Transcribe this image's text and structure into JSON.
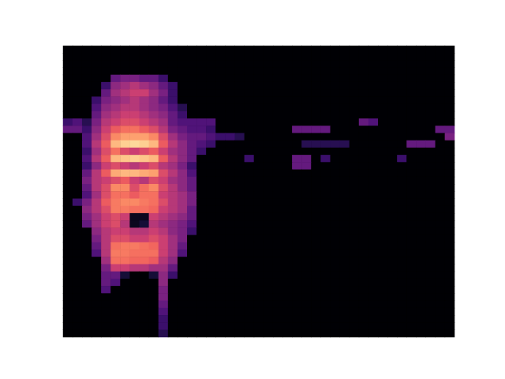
{
  "chart_data": {
    "type": "heatmap",
    "color": "magma",
    "tick_labels": false,
    "zlim": [
      0,
      1
    ],
    "z": [
      [
        0,
        0,
        0,
        0,
        0,
        0,
        0,
        0,
        0,
        0,
        0,
        0,
        0,
        0,
        0,
        0,
        0,
        0,
        0,
        0,
        0,
        0,
        0,
        0,
        0,
        0,
        0,
        0,
        0,
        0,
        0,
        0,
        0,
        0,
        0,
        0,
        0,
        0,
        0,
        0,
        0
      ],
      [
        0,
        0,
        0,
        0,
        0,
        0,
        0,
        0,
        0,
        0,
        0,
        0,
        0,
        0,
        0,
        0,
        0,
        0,
        0,
        0,
        0,
        0,
        0,
        0,
        0,
        0,
        0,
        0,
        0,
        0,
        0,
        0,
        0,
        0,
        0,
        0,
        0,
        0,
        0,
        0,
        0
      ],
      [
        0,
        0,
        0,
        0,
        0,
        0,
        0,
        0,
        0,
        0,
        0,
        0,
        0,
        0,
        0,
        0,
        0,
        0,
        0,
        0,
        0,
        0,
        0,
        0,
        0,
        0,
        0,
        0,
        0,
        0,
        0,
        0,
        0,
        0,
        0,
        0,
        0,
        0,
        0,
        0,
        0
      ],
      [
        0,
        0,
        0,
        0,
        0,
        0,
        0,
        0,
        0,
        0,
        0,
        0,
        0,
        0,
        0,
        0,
        0,
        0,
        0,
        0,
        0,
        0,
        0,
        0,
        0,
        0,
        0,
        0,
        0,
        0,
        0,
        0,
        0,
        0,
        0,
        0,
        0,
        0,
        0,
        0,
        0
      ],
      [
        0,
        0,
        0,
        0,
        0,
        0.3,
        0.35,
        0.35,
        0.3,
        0.3,
        0.2,
        0,
        0,
        0,
        0,
        0,
        0,
        0,
        0,
        0,
        0,
        0,
        0,
        0,
        0,
        0,
        0,
        0,
        0,
        0,
        0,
        0,
        0,
        0,
        0,
        0,
        0,
        0,
        0,
        0,
        0
      ],
      [
        0,
        0,
        0,
        0,
        0.2,
        0.4,
        0.45,
        0.5,
        0.45,
        0.4,
        0.3,
        0.2,
        0,
        0,
        0,
        0,
        0,
        0,
        0,
        0,
        0,
        0,
        0,
        0,
        0,
        0,
        0,
        0,
        0,
        0,
        0,
        0,
        0,
        0,
        0,
        0,
        0,
        0,
        0,
        0,
        0
      ],
      [
        0,
        0,
        0,
        0,
        0.3,
        0.45,
        0.5,
        0.55,
        0.55,
        0.45,
        0.35,
        0.2,
        0,
        0,
        0,
        0,
        0,
        0,
        0,
        0,
        0,
        0,
        0,
        0,
        0,
        0,
        0,
        0,
        0,
        0,
        0,
        0,
        0,
        0,
        0,
        0,
        0,
        0,
        0,
        0,
        0
      ],
      [
        0,
        0,
        0,
        0.2,
        0.35,
        0.4,
        0.45,
        0.5,
        0.45,
        0.4,
        0.3,
        0.2,
        0,
        0,
        0,
        0,
        0,
        0,
        0,
        0,
        0,
        0,
        0,
        0,
        0,
        0,
        0,
        0,
        0,
        0,
        0,
        0,
        0,
        0,
        0,
        0,
        0,
        0,
        0,
        0,
        0
      ],
      [
        0,
        0,
        0,
        0.25,
        0.4,
        0.45,
        0.5,
        0.5,
        0.45,
        0.4,
        0.35,
        0.25,
        0.15,
        0,
        0,
        0,
        0,
        0,
        0,
        0,
        0,
        0,
        0,
        0,
        0,
        0,
        0,
        0,
        0,
        0,
        0,
        0,
        0,
        0,
        0,
        0,
        0,
        0,
        0,
        0,
        0
      ],
      [
        0,
        0,
        0,
        0.3,
        0.45,
        0.5,
        0.55,
        0.55,
        0.5,
        0.45,
        0.4,
        0.3,
        0.2,
        0,
        0,
        0,
        0,
        0,
        0,
        0,
        0,
        0,
        0,
        0,
        0,
        0,
        0,
        0,
        0,
        0,
        0,
        0,
        0,
        0,
        0,
        0,
        0,
        0,
        0,
        0,
        0
      ],
      [
        0.2,
        0.25,
        0.15,
        0.35,
        0.5,
        0.55,
        0.6,
        0.6,
        0.55,
        0.5,
        0.45,
        0.3,
        0.25,
        0.25,
        0.25,
        0.25,
        0,
        0,
        0,
        0,
        0,
        0,
        0,
        0,
        0,
        0,
        0,
        0,
        0,
        0,
        0,
        0.3,
        0.25,
        0,
        0,
        0,
        0,
        0,
        0,
        0,
        0
      ],
      [
        0.3,
        0.3,
        0.2,
        0.4,
        0.55,
        0.65,
        0.7,
        0.7,
        0.65,
        0.6,
        0.5,
        0.35,
        0.3,
        0.25,
        0.25,
        0.2,
        0,
        0,
        0,
        0,
        0,
        0,
        0,
        0,
        0.3,
        0.3,
        0.3,
        0.3,
        0,
        0,
        0,
        0,
        0,
        0,
        0,
        0,
        0,
        0,
        0,
        0.3,
        0.3
      ],
      [
        0,
        0,
        0.25,
        0.45,
        0.6,
        0.75,
        0.8,
        0.8,
        0.8,
        0.75,
        0.6,
        0.45,
        0.35,
        0.3,
        0.3,
        0.25,
        0.2,
        0.2,
        0.15,
        0,
        0,
        0,
        0,
        0,
        0,
        0,
        0,
        0,
        0,
        0,
        0,
        0,
        0,
        0,
        0,
        0,
        0,
        0,
        0,
        0,
        0.35
      ],
      [
        0,
        0,
        0.25,
        0.5,
        0.65,
        0.85,
        0.9,
        0.92,
        0.9,
        0.85,
        0.65,
        0.5,
        0.4,
        0.3,
        0.25,
        0.2,
        0,
        0,
        0,
        0,
        0,
        0,
        0,
        0,
        0,
        0.15,
        0.15,
        0.15,
        0.15,
        0.15,
        0,
        0,
        0,
        0,
        0,
        0,
        0.3,
        0.3,
        0.3,
        0,
        0
      ],
      [
        0,
        0,
        0.2,
        0.45,
        0.6,
        0.7,
        0.6,
        0.55,
        0.6,
        0.65,
        0.55,
        0.45,
        0.4,
        0.3,
        0.2,
        0,
        0,
        0,
        0,
        0,
        0,
        0,
        0,
        0,
        0,
        0,
        0,
        0,
        0,
        0,
        0,
        0,
        0,
        0,
        0,
        0,
        0,
        0,
        0,
        0,
        0
      ],
      [
        0,
        0,
        0.25,
        0.5,
        0.65,
        0.85,
        0.88,
        0.9,
        0.88,
        0.85,
        0.65,
        0.5,
        0.4,
        0.3,
        0,
        0,
        0,
        0,
        0,
        0.2,
        0,
        0,
        0,
        0,
        0.3,
        0.3,
        0,
        0.2,
        0,
        0,
        0,
        0,
        0,
        0,
        0,
        0.2,
        0,
        0,
        0,
        0,
        0
      ],
      [
        0,
        0,
        0.2,
        0.4,
        0.55,
        0.6,
        0.55,
        0.5,
        0.55,
        0.6,
        0.5,
        0.45,
        0.35,
        0.2,
        0,
        0,
        0,
        0,
        0,
        0,
        0,
        0,
        0,
        0,
        0.3,
        0.3,
        0,
        0,
        0,
        0,
        0,
        0,
        0,
        0,
        0,
        0,
        0,
        0,
        0,
        0,
        0
      ],
      [
        0,
        0,
        0.3,
        0.5,
        0.65,
        0.82,
        0.85,
        0.85,
        0.82,
        0.8,
        0.6,
        0.5,
        0.4,
        0.25,
        0,
        0,
        0,
        0,
        0,
        0,
        0,
        0,
        0,
        0,
        0,
        0,
        0,
        0,
        0,
        0,
        0,
        0,
        0,
        0,
        0,
        0,
        0,
        0,
        0,
        0,
        0
      ],
      [
        0,
        0,
        0.35,
        0.5,
        0.55,
        0.6,
        0.65,
        0.55,
        0.5,
        0.6,
        0.55,
        0.45,
        0.4,
        0.3,
        0,
        0,
        0,
        0,
        0,
        0,
        0,
        0,
        0,
        0,
        0,
        0,
        0,
        0,
        0,
        0,
        0,
        0,
        0,
        0,
        0,
        0,
        0,
        0,
        0,
        0,
        0
      ],
      [
        0,
        0,
        0.3,
        0.5,
        0.6,
        0.75,
        0.75,
        0.6,
        0.7,
        0.75,
        0.6,
        0.5,
        0.4,
        0.3,
        0,
        0,
        0,
        0,
        0,
        0,
        0,
        0,
        0,
        0,
        0,
        0,
        0,
        0,
        0,
        0,
        0,
        0,
        0,
        0,
        0,
        0,
        0,
        0,
        0,
        0,
        0
      ],
      [
        0,
        0,
        0.25,
        0.45,
        0.6,
        0.7,
        0.7,
        0.65,
        0.7,
        0.7,
        0.55,
        0.5,
        0.45,
        0.35,
        0,
        0,
        0,
        0,
        0,
        0,
        0,
        0,
        0,
        0,
        0,
        0,
        0,
        0,
        0,
        0,
        0,
        0,
        0,
        0,
        0,
        0,
        0,
        0,
        0,
        0,
        0
      ],
      [
        0,
        0.2,
        0.35,
        0.5,
        0.65,
        0.72,
        0.75,
        0.75,
        0.72,
        0.7,
        0.6,
        0.5,
        0.45,
        0.35,
        0,
        0,
        0,
        0,
        0,
        0,
        0,
        0,
        0,
        0,
        0,
        0,
        0,
        0,
        0,
        0,
        0,
        0,
        0,
        0,
        0,
        0,
        0,
        0,
        0,
        0,
        0
      ],
      [
        0,
        0,
        0.4,
        0.5,
        0.6,
        0.72,
        0.72,
        0.7,
        0.7,
        0.68,
        0.55,
        0.5,
        0.45,
        0.3,
        0,
        0,
        0,
        0,
        0,
        0,
        0,
        0,
        0,
        0,
        0,
        0,
        0,
        0,
        0,
        0,
        0,
        0,
        0,
        0,
        0,
        0,
        0,
        0,
        0,
        0,
        0
      ],
      [
        0,
        0,
        0.35,
        0.45,
        0.55,
        0.6,
        0.55,
        0.05,
        0.05,
        0.55,
        0.5,
        0.45,
        0.4,
        0.3,
        0,
        0,
        0,
        0,
        0,
        0,
        0,
        0,
        0,
        0,
        0,
        0,
        0,
        0,
        0,
        0,
        0,
        0,
        0,
        0,
        0,
        0,
        0,
        0,
        0,
        0,
        0
      ],
      [
        0,
        0,
        0.3,
        0.45,
        0.55,
        0.6,
        0.5,
        0.05,
        0.1,
        0.5,
        0.45,
        0.4,
        0.35,
        0.25,
        0,
        0,
        0,
        0,
        0,
        0,
        0,
        0,
        0,
        0,
        0,
        0,
        0,
        0,
        0,
        0,
        0,
        0,
        0,
        0,
        0,
        0,
        0,
        0,
        0,
        0,
        0
      ],
      [
        0,
        0,
        0,
        0.4,
        0.5,
        0.55,
        0.55,
        0.5,
        0.5,
        0.55,
        0.5,
        0.4,
        0.35,
        0.2,
        0,
        0,
        0,
        0,
        0,
        0,
        0,
        0,
        0,
        0,
        0,
        0,
        0,
        0,
        0,
        0,
        0,
        0,
        0,
        0,
        0,
        0,
        0,
        0,
        0,
        0,
        0
      ],
      [
        0,
        0,
        0,
        0.35,
        0.5,
        0.6,
        0.6,
        0.55,
        0.55,
        0.6,
        0.55,
        0.45,
        0.35,
        0,
        0,
        0,
        0,
        0,
        0,
        0,
        0,
        0,
        0,
        0,
        0,
        0,
        0,
        0,
        0,
        0,
        0,
        0,
        0,
        0,
        0,
        0,
        0,
        0,
        0,
        0,
        0
      ],
      [
        0,
        0,
        0,
        0.3,
        0.5,
        0.7,
        0.72,
        0.72,
        0.7,
        0.68,
        0.55,
        0.45,
        0.3,
        0,
        0,
        0,
        0,
        0,
        0,
        0,
        0,
        0,
        0,
        0,
        0,
        0,
        0,
        0,
        0,
        0,
        0,
        0,
        0,
        0,
        0,
        0,
        0,
        0,
        0,
        0,
        0
      ],
      [
        0,
        0,
        0,
        0.25,
        0.5,
        0.72,
        0.72,
        0.7,
        0.7,
        0.7,
        0.55,
        0.45,
        0.25,
        0,
        0,
        0,
        0,
        0,
        0,
        0,
        0,
        0,
        0,
        0,
        0,
        0,
        0,
        0,
        0,
        0,
        0,
        0,
        0,
        0,
        0,
        0,
        0,
        0,
        0,
        0,
        0
      ],
      [
        0,
        0,
        0,
        0,
        0.45,
        0.7,
        0.7,
        0.68,
        0.68,
        0.65,
        0.5,
        0.4,
        0,
        0,
        0,
        0,
        0,
        0,
        0,
        0,
        0,
        0,
        0,
        0,
        0,
        0,
        0,
        0,
        0,
        0,
        0,
        0,
        0,
        0,
        0,
        0,
        0,
        0,
        0,
        0,
        0
      ],
      [
        0,
        0,
        0,
        0,
        0.35,
        0.55,
        0.55,
        0.5,
        0.5,
        0.45,
        0.45,
        0.3,
        0,
        0,
        0,
        0,
        0,
        0,
        0,
        0,
        0,
        0,
        0,
        0,
        0,
        0,
        0,
        0,
        0,
        0,
        0,
        0,
        0,
        0,
        0,
        0,
        0,
        0,
        0,
        0,
        0
      ],
      [
        0,
        0,
        0,
        0,
        0.3,
        0.3,
        0.1,
        0,
        0,
        0.1,
        0.4,
        0.2,
        0,
        0,
        0,
        0,
        0,
        0,
        0,
        0,
        0,
        0,
        0,
        0,
        0,
        0,
        0,
        0,
        0,
        0,
        0,
        0,
        0,
        0,
        0,
        0,
        0,
        0,
        0,
        0,
        0
      ],
      [
        0,
        0,
        0,
        0,
        0.3,
        0.25,
        0,
        0,
        0,
        0,
        0.4,
        0,
        0,
        0,
        0,
        0,
        0,
        0,
        0,
        0,
        0,
        0,
        0,
        0,
        0,
        0,
        0,
        0,
        0,
        0,
        0,
        0,
        0,
        0,
        0,
        0,
        0,
        0,
        0,
        0,
        0
      ],
      [
        0,
        0,
        0,
        0,
        0.25,
        0,
        0,
        0,
        0,
        0,
        0.35,
        0,
        0,
        0,
        0,
        0,
        0,
        0,
        0,
        0,
        0,
        0,
        0,
        0,
        0,
        0,
        0,
        0,
        0,
        0,
        0,
        0,
        0,
        0,
        0,
        0,
        0,
        0,
        0,
        0,
        0
      ],
      [
        0,
        0,
        0,
        0,
        0,
        0,
        0,
        0,
        0,
        0,
        0.35,
        0,
        0,
        0,
        0,
        0,
        0,
        0,
        0,
        0,
        0,
        0,
        0,
        0,
        0,
        0,
        0,
        0,
        0,
        0,
        0,
        0,
        0,
        0,
        0,
        0,
        0,
        0,
        0,
        0,
        0
      ],
      [
        0,
        0,
        0,
        0,
        0,
        0,
        0,
        0,
        0,
        0,
        0.3,
        0,
        0,
        0,
        0,
        0,
        0,
        0,
        0,
        0,
        0,
        0,
        0,
        0,
        0,
        0,
        0,
        0,
        0,
        0,
        0,
        0,
        0,
        0,
        0,
        0,
        0,
        0,
        0,
        0,
        0
      ],
      [
        0,
        0,
        0,
        0,
        0,
        0,
        0,
        0,
        0,
        0,
        0.25,
        0,
        0,
        0,
        0,
        0,
        0,
        0,
        0,
        0,
        0,
        0,
        0,
        0,
        0,
        0,
        0,
        0,
        0,
        0,
        0,
        0,
        0,
        0,
        0,
        0,
        0,
        0,
        0,
        0,
        0
      ],
      [
        0,
        0,
        0,
        0,
        0,
        0,
        0,
        0,
        0,
        0,
        0.2,
        0,
        0,
        0,
        0,
        0,
        0,
        0,
        0,
        0,
        0,
        0,
        0,
        0,
        0,
        0,
        0,
        0,
        0,
        0,
        0,
        0,
        0,
        0,
        0,
        0,
        0,
        0,
        0,
        0,
        0
      ],
      [
        0,
        0,
        0,
        0,
        0,
        0,
        0,
        0,
        0,
        0,
        0.2,
        0,
        0,
        0,
        0,
        0,
        0,
        0,
        0,
        0,
        0,
        0,
        0,
        0,
        0,
        0,
        0,
        0,
        0,
        0,
        0,
        0,
        0,
        0,
        0,
        0,
        0,
        0,
        0,
        0,
        0
      ],
      [
        0,
        0,
        0,
        0,
        0,
        0,
        0,
        0,
        0,
        0,
        0.15,
        0,
        0,
        0,
        0,
        0,
        0,
        0,
        0,
        0,
        0,
        0,
        0,
        0,
        0,
        0,
        0,
        0,
        0,
        0,
        0,
        0,
        0,
        0,
        0,
        0,
        0,
        0,
        0,
        0,
        0
      ]
    ]
  }
}
